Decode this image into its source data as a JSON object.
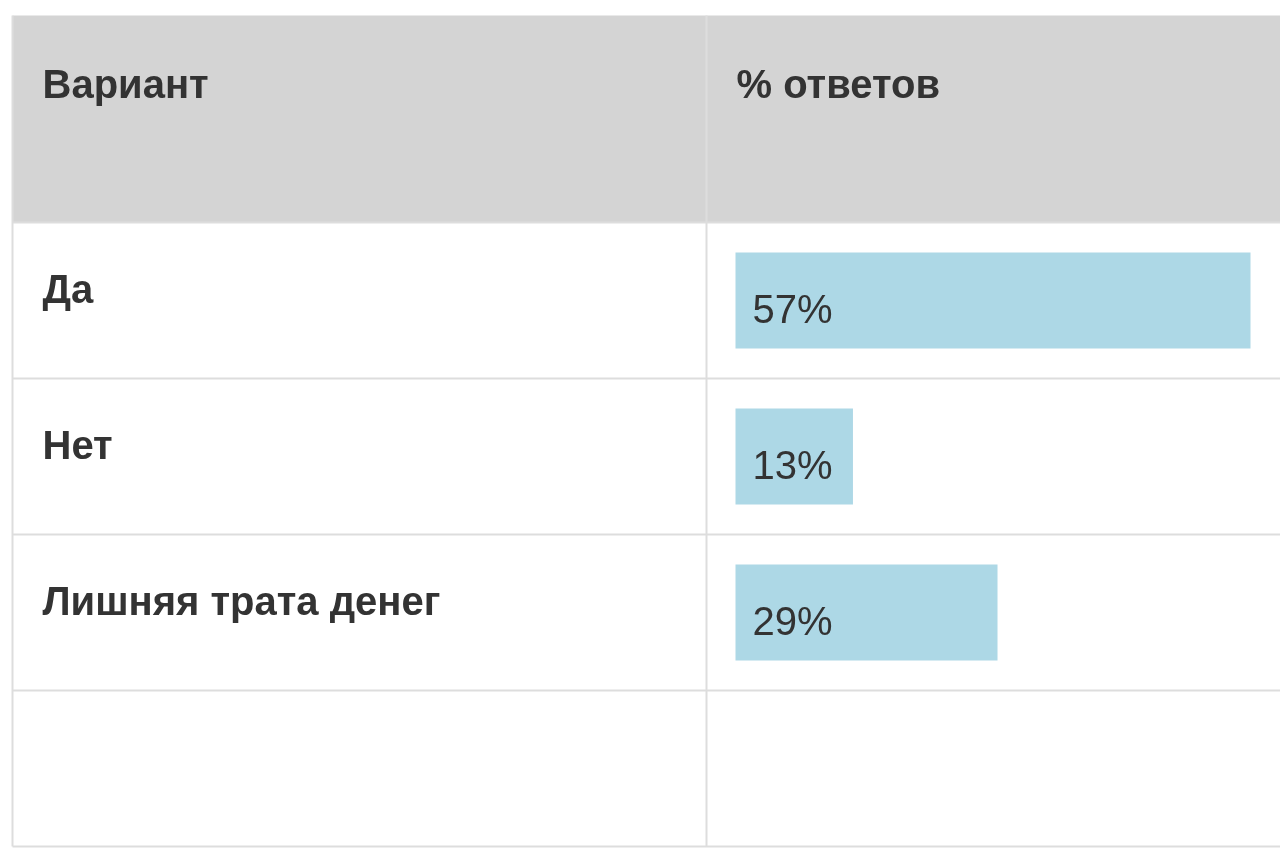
{
  "chart_data": {
    "type": "bar",
    "orientation": "horizontal",
    "ylabel": "Вариант",
    "xlabel": "% ответов",
    "categories": [
      "Да",
      "Нет",
      "Лишняя трата денег",
      null
    ],
    "values": [
      57,
      13,
      29,
      null
    ],
    "value_labels": [
      "57%",
      "13%",
      "29%",
      null
    ],
    "color": "#add8e6",
    "grid": false
  }
}
